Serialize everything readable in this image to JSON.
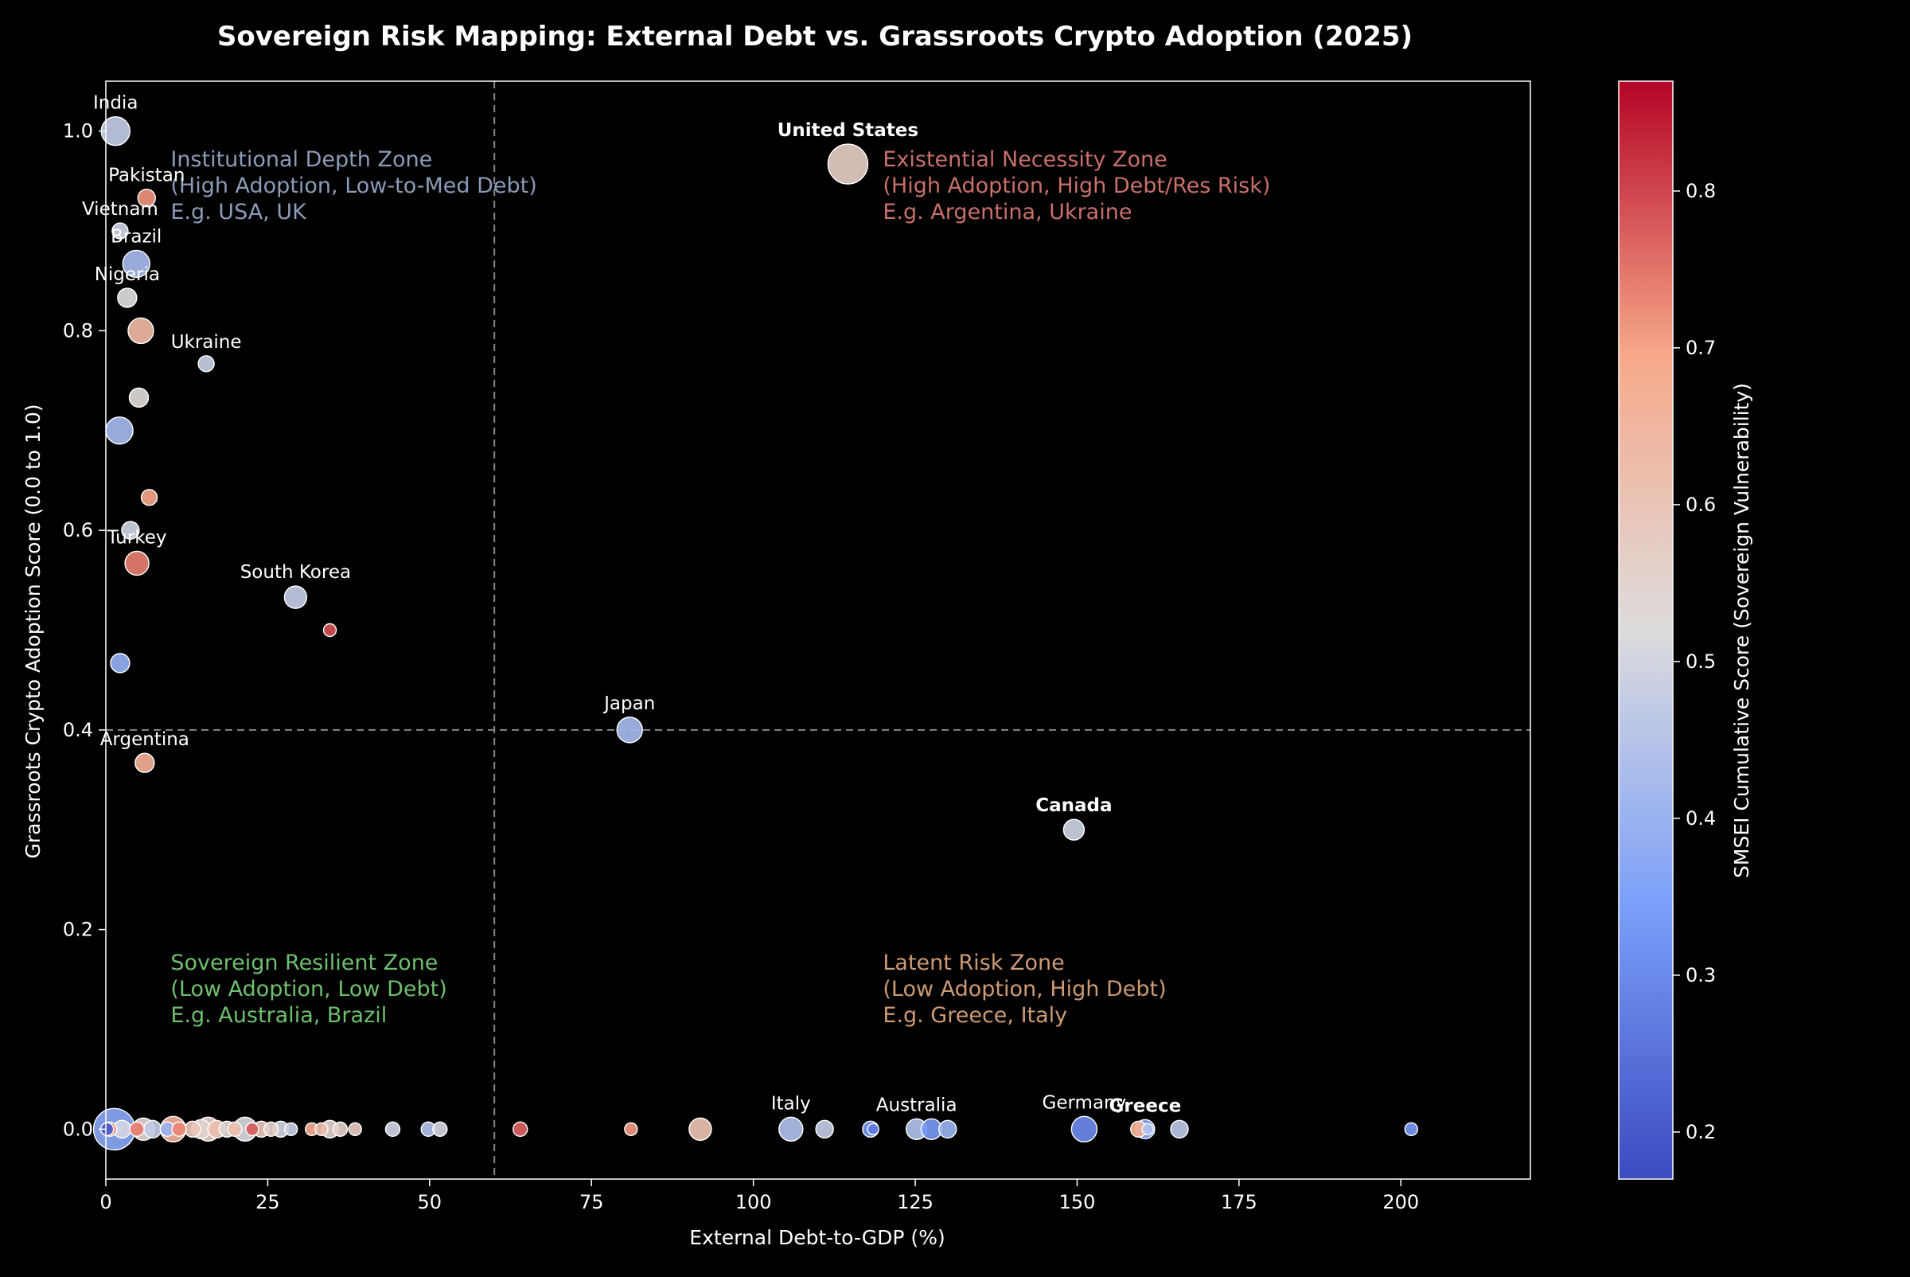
{
  "chart_data": {
    "type": "scatter",
    "title": "Sovereign Risk Mapping: External Debt vs. Grassroots Crypto Adoption (2025)",
    "xlabel": "External Debt-to-GDP (%)",
    "ylabel": "Grassroots Crypto Adoption Score (0.0 to 1.0)",
    "colorbar_label": "SMSEI Cumulative Score (Sovereign Vulnerability)",
    "xlim": [
      0,
      220
    ],
    "ylim": [
      -0.05,
      1.05
    ],
    "x_ticks": [
      0,
      25,
      50,
      75,
      100,
      125,
      150,
      175,
      200
    ],
    "y_ticks": [
      0.0,
      0.2,
      0.4,
      0.6,
      0.8,
      1.0
    ],
    "colorbar_range": [
      0.17,
      0.87
    ],
    "colorbar_ticks": [
      0.2,
      0.3,
      0.4,
      0.5,
      0.6,
      0.7,
      0.8
    ],
    "colormap": "coolwarm",
    "grid": false,
    "threshold_lines": {
      "x": 60,
      "y": 0.4
    },
    "zones": [
      {
        "lines": [
          "Institutional Depth Zone",
          "(High Adoption, Low-to-Med Debt)",
          "E.g. USA, UK"
        ],
        "x": 10,
        "y": 0.96,
        "color": "#8a9cb8"
      },
      {
        "lines": [
          "Existential Necessity Zone",
          "(High Adoption, High Debt/Res Risk)",
          "E.g. Argentina, Ukraine"
        ],
        "x": 120,
        "y": 0.96,
        "color": "#c8706a"
      },
      {
        "lines": [
          "Sovereign Resilient Zone",
          "(Low Adoption, Low Debt)",
          "E.g. Australia, Brazil"
        ],
        "x": 10,
        "y": 0.155,
        "color": "#6fbf6f"
      },
      {
        "lines": [
          "Latent Risk Zone",
          "(Low Adoption, High Debt)",
          "E.g. Greece, Italy"
        ],
        "x": 120,
        "y": 0.155,
        "color": "#cc9a73"
      }
    ],
    "points": [
      {
        "x": 1.5,
        "y": 1.0,
        "size": 18,
        "smsei": 0.47,
        "label": "India",
        "bold": false
      },
      {
        "x": 6.3,
        "y": 0.933,
        "size": 11,
        "smsei": 0.72,
        "label": "Pakistan",
        "bold": false
      },
      {
        "x": 2.2,
        "y": 0.9,
        "size": 10,
        "smsei": 0.49,
        "label": "Vietnam",
        "bold": false
      },
      {
        "x": 4.7,
        "y": 0.867,
        "size": 17,
        "smsei": 0.42,
        "label": "Brazil",
        "bold": false
      },
      {
        "x": 3.3,
        "y": 0.833,
        "size": 12,
        "smsei": 0.52,
        "label": "Nigeria",
        "bold": false
      },
      {
        "x": 5.4,
        "y": 0.8,
        "size": 16,
        "smsei": 0.64,
        "label": "",
        "bold": false
      },
      {
        "x": 15.5,
        "y": 0.767,
        "size": 10,
        "smsei": 0.48,
        "label": "Ukraine",
        "bold": false
      },
      {
        "x": 5.1,
        "y": 0.733,
        "size": 12,
        "smsei": 0.53,
        "label": "",
        "bold": false
      },
      {
        "x": 2.1,
        "y": 0.7,
        "size": 17,
        "smsei": 0.42,
        "label": "",
        "bold": false
      },
      {
        "x": 6.7,
        "y": 0.633,
        "size": 10,
        "smsei": 0.7,
        "label": "",
        "bold": false
      },
      {
        "x": 3.8,
        "y": 0.6,
        "size": 11,
        "smsei": 0.49,
        "label": "",
        "bold": false
      },
      {
        "x": 4.8,
        "y": 0.567,
        "size": 15,
        "smsei": 0.74,
        "label": "Turkey",
        "bold": false
      },
      {
        "x": 29.3,
        "y": 0.533,
        "size": 14,
        "smsei": 0.47,
        "label": "South Korea",
        "bold": false
      },
      {
        "x": 34.6,
        "y": 0.5,
        "size": 8,
        "smsei": 0.79,
        "label": "",
        "bold": false
      },
      {
        "x": 2.2,
        "y": 0.467,
        "size": 12,
        "smsei": 0.39,
        "label": "",
        "bold": false
      },
      {
        "x": 80.9,
        "y": 0.4,
        "size": 16,
        "smsei": 0.42,
        "label": "Japan",
        "bold": false
      },
      {
        "x": 6.0,
        "y": 0.367,
        "size": 12,
        "smsei": 0.67,
        "label": "Argentina",
        "bold": false
      },
      {
        "x": 114.6,
        "y": 0.967,
        "size": 25,
        "smsei": 0.57,
        "label": "United States",
        "bold": true
      },
      {
        "x": 149.5,
        "y": 0.3,
        "size": 13,
        "smsei": 0.49,
        "label": "Canada",
        "bold": true
      },
      {
        "x": 1.3,
        "y": 0.0,
        "size": 26,
        "smsei": 0.37,
        "label": "",
        "bold": false
      },
      {
        "x": 0.2,
        "y": 0.0,
        "size": 8,
        "smsei": 0.2,
        "label": "",
        "bold": false
      },
      {
        "x": 0.6,
        "y": 0.0,
        "size": 9,
        "smsei": 0.71,
        "label": "",
        "bold": false
      },
      {
        "x": 2.5,
        "y": 0.0,
        "size": 11,
        "smsei": 0.5,
        "label": "",
        "bold": false
      },
      {
        "x": 4.8,
        "y": 0.0,
        "size": 9,
        "smsei": 0.74,
        "label": "",
        "bold": false
      },
      {
        "x": 5.8,
        "y": 0.0,
        "size": 14,
        "smsei": 0.55,
        "label": "",
        "bold": false
      },
      {
        "x": 7.2,
        "y": 0.0,
        "size": 11,
        "smsei": 0.47,
        "label": "",
        "bold": false
      },
      {
        "x": 9.5,
        "y": 0.0,
        "size": 9,
        "smsei": 0.4,
        "label": "",
        "bold": false
      },
      {
        "x": 10.4,
        "y": 0.0,
        "size": 16,
        "smsei": 0.66,
        "label": "",
        "bold": false
      },
      {
        "x": 11.3,
        "y": 0.0,
        "size": 9,
        "smsei": 0.73,
        "label": "",
        "bold": false
      },
      {
        "x": 13.4,
        "y": 0.0,
        "size": 10,
        "smsei": 0.6,
        "label": "",
        "bold": false
      },
      {
        "x": 14.7,
        "y": 0.0,
        "size": 12,
        "smsei": 0.55,
        "label": "",
        "bold": false
      },
      {
        "x": 15.8,
        "y": 0.0,
        "size": 15,
        "smsei": 0.57,
        "label": "",
        "bold": false
      },
      {
        "x": 17.1,
        "y": 0.0,
        "size": 11,
        "smsei": 0.62,
        "label": "",
        "bold": false
      },
      {
        "x": 18.7,
        "y": 0.0,
        "size": 10,
        "smsei": 0.54,
        "label": "",
        "bold": false
      },
      {
        "x": 19.9,
        "y": 0.0,
        "size": 9,
        "smsei": 0.62,
        "label": "",
        "bold": false
      },
      {
        "x": 21.5,
        "y": 0.0,
        "size": 15,
        "smsei": 0.51,
        "label": "",
        "bold": false
      },
      {
        "x": 22.6,
        "y": 0.0,
        "size": 8,
        "smsei": 0.78,
        "label": "",
        "bold": false
      },
      {
        "x": 24.0,
        "y": 0.0,
        "size": 10,
        "smsei": 0.6,
        "label": "",
        "bold": false
      },
      {
        "x": 25.5,
        "y": 0.0,
        "size": 9,
        "smsei": 0.56,
        "label": "",
        "bold": false
      },
      {
        "x": 27.0,
        "y": 0.0,
        "size": 10,
        "smsei": 0.5,
        "label": "",
        "bold": false
      },
      {
        "x": 28.6,
        "y": 0.0,
        "size": 8,
        "smsei": 0.48,
        "label": "",
        "bold": false
      },
      {
        "x": 31.8,
        "y": 0.0,
        "size": 8,
        "smsei": 0.68,
        "label": "",
        "bold": false
      },
      {
        "x": 33.3,
        "y": 0.0,
        "size": 8,
        "smsei": 0.63,
        "label": "",
        "bold": false
      },
      {
        "x": 34.6,
        "y": 0.0,
        "size": 11,
        "smsei": 0.55,
        "label": "",
        "bold": false
      },
      {
        "x": 36.2,
        "y": 0.0,
        "size": 9,
        "smsei": 0.56,
        "label": "",
        "bold": false
      },
      {
        "x": 38.5,
        "y": 0.0,
        "size": 8,
        "smsei": 0.58,
        "label": "",
        "bold": false
      },
      {
        "x": 44.3,
        "y": 0.0,
        "size": 9,
        "smsei": 0.49,
        "label": "",
        "bold": false
      },
      {
        "x": 49.8,
        "y": 0.0,
        "size": 9,
        "smsei": 0.44,
        "label": "",
        "bold": false
      },
      {
        "x": 51.6,
        "y": 0.0,
        "size": 9,
        "smsei": 0.5,
        "label": "",
        "bold": false
      },
      {
        "x": 64.0,
        "y": 0.0,
        "size": 9,
        "smsei": 0.77,
        "label": "",
        "bold": false
      },
      {
        "x": 81.1,
        "y": 0.0,
        "size": 8,
        "smsei": 0.71,
        "label": "",
        "bold": false
      },
      {
        "x": 91.8,
        "y": 0.0,
        "size": 14,
        "smsei": 0.61,
        "label": "",
        "bold": false
      },
      {
        "x": 105.8,
        "y": 0.0,
        "size": 15,
        "smsei": 0.44,
        "label": "Italy",
        "bold": false
      },
      {
        "x": 111.0,
        "y": 0.0,
        "size": 11,
        "smsei": 0.47,
        "label": "",
        "bold": false
      },
      {
        "x": 118.1,
        "y": 0.0,
        "size": 10,
        "smsei": 0.33,
        "label": "",
        "bold": false
      },
      {
        "x": 118.5,
        "y": 0.0,
        "size": 7,
        "smsei": 0.27,
        "label": "",
        "bold": false
      },
      {
        "x": 125.2,
        "y": 0.0,
        "size": 13,
        "smsei": 0.44,
        "label": "Australia",
        "bold": false
      },
      {
        "x": 127.5,
        "y": 0.0,
        "size": 13,
        "smsei": 0.33,
        "label": "",
        "bold": false
      },
      {
        "x": 130.0,
        "y": 0.0,
        "size": 11,
        "smsei": 0.4,
        "label": "",
        "bold": false
      },
      {
        "x": 151.1,
        "y": 0.0,
        "size": 16,
        "smsei": 0.3,
        "label": "Germany",
        "bold": false
      },
      {
        "x": 159.5,
        "y": 0.0,
        "size": 10,
        "smsei": 0.67,
        "label": "",
        "bold": false
      },
      {
        "x": 160.5,
        "y": 0.0,
        "size": 12,
        "smsei": 0.36,
        "label": "Greece",
        "bold": true
      },
      {
        "x": 160.9,
        "y": 0.0,
        "size": 7,
        "smsei": 0.44,
        "label": "",
        "bold": false
      },
      {
        "x": 165.8,
        "y": 0.0,
        "size": 11,
        "smsei": 0.46,
        "label": "",
        "bold": false
      },
      {
        "x": 201.6,
        "y": 0.0,
        "size": 8,
        "smsei": 0.33,
        "label": "",
        "bold": false
      }
    ]
  }
}
